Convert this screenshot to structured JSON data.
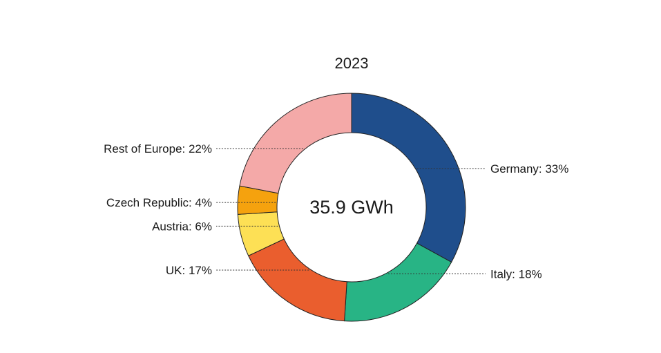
{
  "chart_data": {
    "type": "pie",
    "title": "2023",
    "center_label": "35.9 GWh",
    "slices": [
      {
        "label": "Germany",
        "value": 33,
        "color": "#1f4e8c"
      },
      {
        "label": "Italy",
        "value": 18,
        "color": "#28b485"
      },
      {
        "label": "UK",
        "value": 17,
        "color": "#ea5e2e"
      },
      {
        "label": "Austria",
        "value": 6,
        "color": "#fde055"
      },
      {
        "label": "Czech Republic",
        "value": 4,
        "color": "#f5a20e"
      },
      {
        "label": "Rest of Europe",
        "value": 22,
        "color": "#f4a9a8"
      }
    ],
    "data_labels": [
      "Germany: 33%",
      "Italy: 18%",
      "UK: 17%",
      "Austria: 6%",
      "Czech Republic: 4%",
      "Rest of Europe: 22%"
    ]
  }
}
